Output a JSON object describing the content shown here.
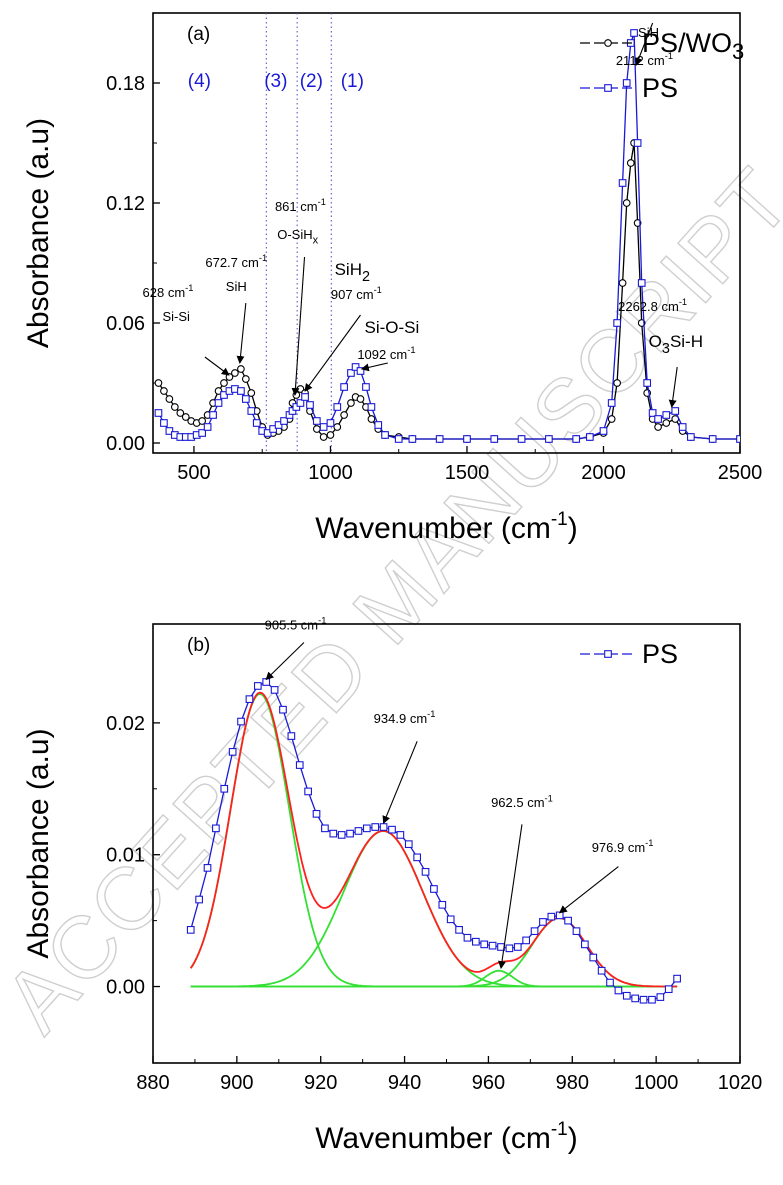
{
  "watermark": "ACCEPTED MANUSCRIPT",
  "chart_data": [
    {
      "type": "line",
      "panel_label": "(a)",
      "xlabel": "Wavenumber (cm⁻¹)",
      "ylabel": "Absorbance (a.u)",
      "xlim": [
        350,
        2500
      ],
      "ylim": [
        -0.005,
        0.215
      ],
      "xticks": [
        500,
        1000,
        1500,
        2000,
        2500
      ],
      "yticks": [
        0.0,
        0.06,
        0.12,
        0.18
      ],
      "ytick_labels": [
        "0.00",
        "0.06",
        "0.12",
        "0.18"
      ],
      "legend": {
        "position": "top-right",
        "entries": [
          "PS/WO3",
          "PS"
        ]
      },
      "series": [
        {
          "name": "PS/WO3",
          "color": "#000000",
          "marker": "circle",
          "x": [
            370,
            390,
            410,
            430,
            450,
            470,
            490,
            510,
            530,
            550,
            570,
            590,
            610,
            630,
            650,
            672,
            690,
            710,
            730,
            750,
            770,
            790,
            810,
            830,
            850,
            861,
            875,
            890,
            907,
            925,
            950,
            975,
            1000,
            1025,
            1050,
            1075,
            1092,
            1110,
            1130,
            1150,
            1175,
            1200,
            1250,
            1300,
            1400,
            1500,
            1600,
            1700,
            1800,
            1900,
            1950,
            2000,
            2030,
            2050,
            2070,
            2085,
            2100,
            2112,
            2125,
            2140,
            2160,
            2180,
            2200,
            2230,
            2262.8,
            2290,
            2320,
            2400,
            2500
          ],
          "y": [
            0.03,
            0.026,
            0.022,
            0.018,
            0.015,
            0.013,
            0.011,
            0.01,
            0.011,
            0.014,
            0.02,
            0.026,
            0.03,
            0.033,
            0.035,
            0.037,
            0.032,
            0.025,
            0.016,
            0.008,
            0.004,
            0.005,
            0.006,
            0.008,
            0.012,
            0.02,
            0.024,
            0.027,
            0.025,
            0.016,
            0.007,
            0.003,
            0.004,
            0.008,
            0.014,
            0.02,
            0.023,
            0.022,
            0.018,
            0.012,
            0.007,
            0.004,
            0.003,
            0.002,
            0.002,
            0.002,
            0.002,
            0.002,
            0.002,
            0.002,
            0.003,
            0.005,
            0.012,
            0.03,
            0.08,
            0.12,
            0.14,
            0.15,
            0.11,
            0.06,
            0.025,
            0.012,
            0.008,
            0.01,
            0.012,
            0.006,
            0.003,
            0.002,
            0.002
          ]
        },
        {
          "name": "PS",
          "color": "#1a1ad6",
          "marker": "square",
          "x": [
            370,
            390,
            410,
            430,
            450,
            470,
            490,
            510,
            530,
            550,
            570,
            590,
            610,
            630,
            650,
            672,
            690,
            710,
            730,
            750,
            770,
            790,
            810,
            830,
            850,
            861,
            875,
            890,
            907,
            925,
            950,
            975,
            1000,
            1025,
            1050,
            1075,
            1092,
            1110,
            1130,
            1150,
            1175,
            1200,
            1250,
            1300,
            1400,
            1500,
            1600,
            1700,
            1800,
            1900,
            1950,
            2000,
            2030,
            2050,
            2070,
            2085,
            2100,
            2112,
            2125,
            2140,
            2160,
            2180,
            2200,
            2230,
            2262.8,
            2290,
            2320,
            2400,
            2500
          ],
          "y": [
            0.015,
            0.01,
            0.006,
            0.004,
            0.003,
            0.003,
            0.003,
            0.004,
            0.005,
            0.008,
            0.014,
            0.02,
            0.024,
            0.026,
            0.027,
            0.026,
            0.022,
            0.016,
            0.01,
            0.006,
            0.005,
            0.007,
            0.009,
            0.011,
            0.014,
            0.016,
            0.018,
            0.02,
            0.023,
            0.019,
            0.011,
            0.008,
            0.01,
            0.018,
            0.028,
            0.035,
            0.038,
            0.036,
            0.028,
            0.018,
            0.009,
            0.004,
            0.002,
            0.002,
            0.002,
            0.002,
            0.002,
            0.002,
            0.002,
            0.002,
            0.003,
            0.006,
            0.02,
            0.06,
            0.13,
            0.18,
            0.2,
            0.205,
            0.15,
            0.08,
            0.03,
            0.015,
            0.012,
            0.014,
            0.016,
            0.008,
            0.003,
            0.002,
            0.002
          ]
        }
      ],
      "region_lines_x": [
        765,
        878,
        1003
      ],
      "region_labels": [
        {
          "text": "(4)",
          "x": 520,
          "y": 0.178
        },
        {
          "text": "(3)",
          "x": 800,
          "y": 0.178
        },
        {
          "text": "(2)",
          "x": 930,
          "y": 0.178
        },
        {
          "text": "(1)",
          "x": 1080,
          "y": 0.178
        }
      ],
      "annotations": [
        {
          "text": "628 cm",
          "sup": "-1",
          "x": 405,
          "y": 0.073,
          "size": "s"
        },
        {
          "text": "Si-Si",
          "x": 435,
          "y": 0.061,
          "size": "s"
        },
        {
          "text": "672.7 cm",
          "sup": "-1",
          "x": 655,
          "y": 0.088,
          "size": "s"
        },
        {
          "text": "SiH",
          "x": 655,
          "y": 0.076,
          "size": "s"
        },
        {
          "text": "861 cm",
          "sup": "-1",
          "x": 890,
          "y": 0.116,
          "size": "s"
        },
        {
          "text": "O-SiH",
          "sub": "x",
          "x": 880,
          "y": 0.102,
          "size": "s"
        },
        {
          "text": "SiH",
          "sub": "2",
          "x": 1080,
          "y": 0.084,
          "size": "m"
        },
        {
          "text": "907 cm",
          "sup": "-1",
          "x": 1095,
          "y": 0.072,
          "size": "s"
        },
        {
          "text": "Si-O-Si",
          "x": 1225,
          "y": 0.055,
          "size": "m"
        },
        {
          "text": "1092 cm",
          "sup": "-1",
          "x": 1205,
          "y": 0.042,
          "size": "s"
        },
        {
          "text": "SiH",
          "x": 2165,
          "y": 0.203,
          "size": "s"
        },
        {
          "text": "2112 cm",
          "sup": "-1",
          "x": 2150,
          "y": 0.189,
          "size": "s"
        },
        {
          "text": "2262.8  cm",
          "sup": "-1",
          "x": 2180,
          "y": 0.066,
          "size": "s"
        },
        {
          "text": "O",
          "sub": "3",
          "tail": "Si-H",
          "x": 2265,
          "y": 0.048,
          "size": "m"
        }
      ],
      "arrows": [
        {
          "from": [
            540,
            0.043
          ],
          "to": [
            628,
            0.034
          ]
        },
        {
          "from": [
            690,
            0.07
          ],
          "to": [
            668,
            0.04
          ]
        },
        {
          "from": [
            905,
            0.093
          ],
          "to": [
            870,
            0.024
          ]
        },
        {
          "from": [
            1110,
            0.064
          ],
          "to": [
            907,
            0.026
          ]
        },
        {
          "from": [
            1210,
            0.04
          ],
          "to": [
            1115,
            0.037
          ]
        },
        {
          "from": [
            2180,
            0.21
          ],
          "to": [
            2120,
            0.189
          ]
        },
        {
          "from": [
            2270,
            0.038
          ],
          "to": [
            2250,
            0.018
          ]
        }
      ]
    },
    {
      "type": "line",
      "panel_label": "(b)",
      "xlabel": "Wavenumber (cm⁻¹)",
      "ylabel": "Absorbance (a.u)",
      "xlim": [
        880,
        1020
      ],
      "ylim": [
        -0.0058,
        0.0275
      ],
      "xticks": [
        880,
        900,
        920,
        940,
        960,
        980,
        1000,
        1020
      ],
      "yticks": [
        0.0,
        0.01,
        0.02
      ],
      "ytick_labels": [
        "0.00",
        "0.01",
        "0.02"
      ],
      "legend": {
        "position": "top-right",
        "entries": [
          "PS"
        ]
      },
      "series": [
        {
          "name": "PS",
          "color": "#1a1ad6",
          "marker": "square",
          "x": [
            889,
            891,
            893,
            895,
            897,
            899,
            901,
            903,
            905,
            907,
            909,
            911,
            913,
            915,
            917,
            919,
            921,
            923,
            925,
            927,
            929,
            931,
            933,
            935,
            937,
            939,
            941,
            943,
            945,
            947,
            949,
            951,
            953,
            955,
            957,
            959,
            961,
            963,
            965,
            967,
            969,
            971,
            973,
            975,
            977,
            979,
            981,
            983,
            985,
            987,
            989,
            991,
            993,
            995,
            997,
            999,
            1001,
            1003,
            1005
          ],
          "y": [
            0.0043,
            0.0066,
            0.009,
            0.012,
            0.015,
            0.0178,
            0.0201,
            0.0218,
            0.0228,
            0.0231,
            0.0225,
            0.021,
            0.019,
            0.0168,
            0.0148,
            0.0131,
            0.012,
            0.0116,
            0.0115,
            0.0116,
            0.0118,
            0.012,
            0.0121,
            0.0121,
            0.0119,
            0.0115,
            0.0108,
            0.0098,
            0.0087,
            0.0074,
            0.0062,
            0.0051,
            0.0043,
            0.0037,
            0.0034,
            0.0032,
            0.0031,
            0.003,
            0.0029,
            0.003,
            0.0035,
            0.0042,
            0.0049,
            0.0053,
            0.0054,
            0.005,
            0.0042,
            0.0032,
            0.0022,
            0.0012,
            0.0003,
            -0.0003,
            -0.0007,
            -0.0009,
            -0.001,
            -0.001,
            -0.0008,
            -0.0002,
            0.0006
          ]
        }
      ],
      "components": [
        {
          "center": 905.5,
          "amp": 0.0222,
          "sigma": 7.0
        },
        {
          "center": 934.9,
          "amp": 0.0118,
          "sigma": 9.5
        },
        {
          "center": 962.5,
          "amp": 0.0012,
          "sigma": 3.2
        },
        {
          "center": 976.9,
          "amp": 0.0052,
          "sigma": 6.5
        }
      ],
      "fit_x_range": [
        889,
        1005
      ],
      "fit_color": "#ff2020",
      "component_color": "#33e033",
      "annotations": [
        {
          "text": "905.5 cm",
          "sup": "-1",
          "x": 914,
          "y": 0.0271,
          "size": "s"
        },
        {
          "text": "934.9 cm",
          "sup": "-1",
          "x": 940,
          "y": 0.02,
          "size": "s"
        },
        {
          "text": "962.5 cm",
          "sup": "-1",
          "x": 968,
          "y": 0.0136,
          "size": "s"
        },
        {
          "text": "976.9 cm",
          "sup": "-1",
          "x": 992,
          "y": 0.0102,
          "size": "s"
        }
      ],
      "arrows": [
        {
          "from": [
            916,
            0.0261
          ],
          "to": [
            907,
            0.0233
          ]
        },
        {
          "from": [
            943,
            0.0186
          ],
          "to": [
            935,
            0.0124
          ]
        },
        {
          "from": [
            968,
            0.0123
          ],
          "to": [
            963,
            0.0014
          ]
        },
        {
          "from": [
            991,
            0.0091
          ],
          "to": [
            977,
            0.0056
          ]
        }
      ]
    }
  ]
}
